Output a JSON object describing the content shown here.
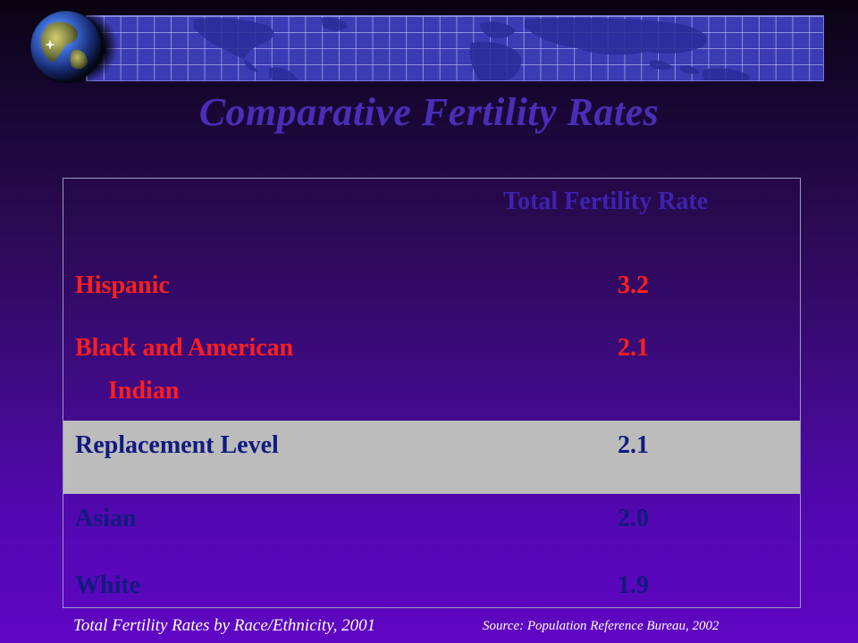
{
  "slide": {
    "title": "Comparative Fertility Rates",
    "column_header": "Total Fertility Rate",
    "rows": [
      {
        "label": "Hispanic",
        "label_line2": "",
        "value": "3.2"
      },
      {
        "label": "Black and American",
        "label_line2": "Indian",
        "value": "2.1"
      },
      {
        "label": "Replacement Level",
        "label_line2": "",
        "value": "2.1"
      },
      {
        "label": "Asian",
        "label_line2": "",
        "value": "2.0"
      },
      {
        "label": "White",
        "label_line2": "",
        "value": "1.9"
      }
    ],
    "caption": "Total Fertility Rates by Race/Ethnicity, 2001",
    "source": "Source: Population Reference Bureau, 2002"
  },
  "colors": {
    "title": "#4a2db8",
    "column_header": "#3e22b0",
    "highlight_text": "#ff1e1e",
    "normal_text": "#111a80",
    "replacement_band": "#bcbcbc"
  },
  "icons": {
    "globe": "globe-icon",
    "world_map": "world-map-grid"
  }
}
